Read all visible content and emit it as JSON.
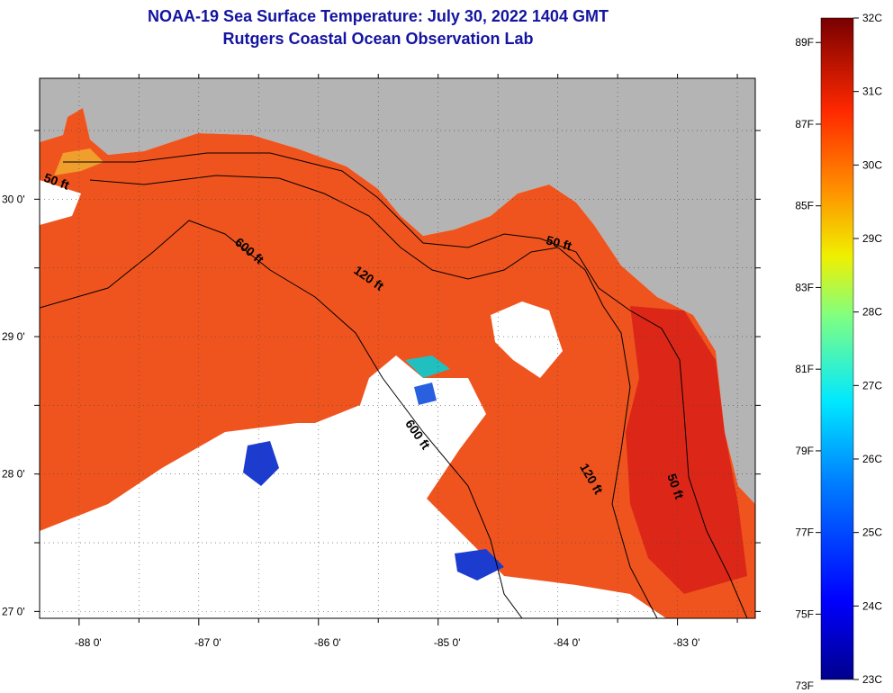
{
  "title": {
    "line1": "NOAA-19 Sea Surface Temperature:  July 30, 2022 1404 GMT",
    "line2": "Rutgers Coastal Ocean Observation Lab"
  },
  "map": {
    "lon_range": [
      -88.33,
      -82.35
    ],
    "lat_range": [
      26.95,
      30.88
    ],
    "x_ticks": [
      {
        "value": -88,
        "label": "-88 0'"
      },
      {
        "value": -87,
        "label": "-87 0'"
      },
      {
        "value": -86,
        "label": "-86 0'"
      },
      {
        "value": -85,
        "label": "-85 0'"
      },
      {
        "value": -84,
        "label": "-84 0'"
      },
      {
        "value": -83,
        "label": "-83 0'"
      }
    ],
    "y_ticks": [
      {
        "value": 27,
        "label": "27 0'"
      },
      {
        "value": 28,
        "label": "28 0'"
      },
      {
        "value": 29,
        "label": "29 0'"
      },
      {
        "value": 30,
        "label": "30 0'"
      }
    ],
    "contour_labels": [
      {
        "text": "50 ft",
        "lon": -88.2,
        "lat": 30.1
      },
      {
        "text": "600 ft",
        "lon": -86.6,
        "lat": 29.6
      },
      {
        "text": "120 ft",
        "lon": -85.6,
        "lat": 29.4
      },
      {
        "text": "50 ft",
        "lon": -84.0,
        "lat": 29.65
      },
      {
        "text": "600 ft",
        "lon": -85.2,
        "lat": 28.27
      },
      {
        "text": "120 ft",
        "lon": -83.75,
        "lat": 27.95
      },
      {
        "text": "50 ft",
        "lon": -83.05,
        "lat": 27.9
      }
    ],
    "colors": {
      "land": "#b4b4b4",
      "no_data": "#ffffff",
      "sst_dominant": "#f0541e",
      "sst_hot": "#d82018",
      "sst_cool": "#1c3cd0",
      "contour_line": "#000000"
    }
  },
  "colorbar": {
    "fahrenheit": [
      "89F",
      "87F",
      "85F",
      "83F",
      "81F",
      "79F",
      "77F",
      "75F",
      "73F"
    ],
    "celsius": [
      "32C",
      "31C",
      "30C",
      "29C",
      "28C",
      "27C",
      "26C",
      "25C",
      "24C",
      "23C"
    ],
    "temp_range_c": [
      23,
      32
    ],
    "gradient_stops": [
      "#00008c",
      "#0000ff",
      "#0080ff",
      "#00e8ff",
      "#80ff80",
      "#f0f000",
      "#ff9000",
      "#ff2800",
      "#780000"
    ]
  }
}
